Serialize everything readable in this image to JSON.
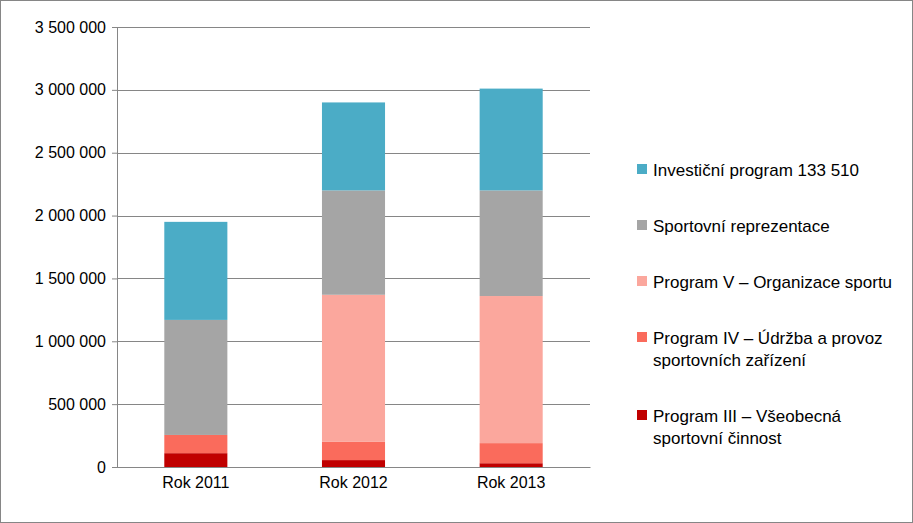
{
  "chart_data": {
    "type": "bar",
    "stacked": true,
    "grid": true,
    "legend": "right",
    "categories": [
      "Rok 2011",
      "Rok 2012",
      "Rok 2013"
    ],
    "ylim": [
      0,
      3500000
    ],
    "yticks": [
      0,
      {
        "value": 500000,
        "label": "500 000"
      },
      {
        "value": 1000000,
        "label": "1 000 000"
      },
      {
        "value": 1500000,
        "label": "1 500 000"
      },
      {
        "value": 2000000,
        "label": "2 000 000"
      },
      {
        "value": 2500000,
        "label": "2 500 000"
      },
      {
        "value": 3000000,
        "label": "3 000 000"
      },
      {
        "value": 3500000,
        "label": "3 500 000"
      }
    ],
    "series": [
      {
        "name": "Program III – Všeobecná sportovní činnost",
        "color": "#c00000",
        "values": [
          110000,
          55000,
          30000
        ]
      },
      {
        "name": "Program IV – Údržba a provoz sportovních zařízení",
        "color": "#fa6b5c",
        "values": [
          145000,
          145000,
          160000
        ]
      },
      {
        "name": "Program V – Organizace sportu",
        "color": "#fba79d",
        "values": [
          0,
          1170000,
          1170000
        ]
      },
      {
        "name": "Sportovní reprezentace",
        "color": "#a5a5a5",
        "values": [
          915000,
          830000,
          840000
        ]
      },
      {
        "name": "Investiční program 133 510",
        "color": "#4bacc6",
        "values": [
          780000,
          700000,
          810000
        ]
      }
    ]
  }
}
